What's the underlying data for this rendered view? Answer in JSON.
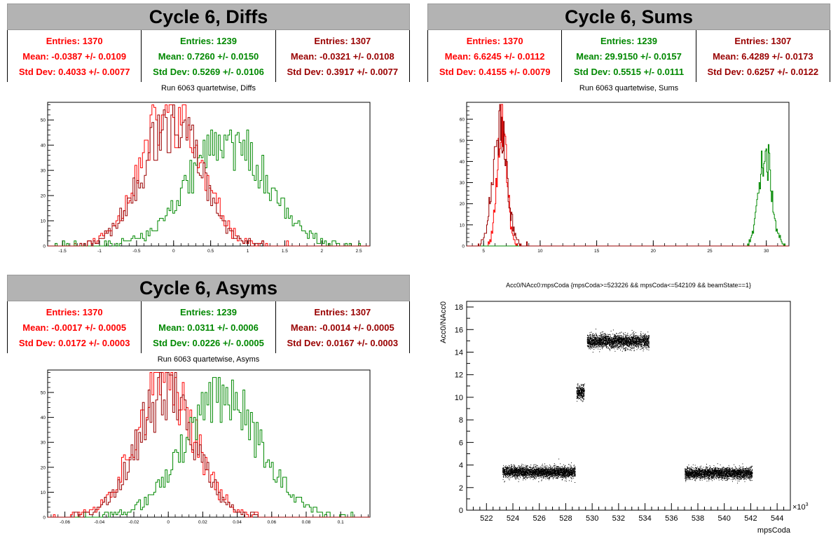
{
  "colors": {
    "red": "#ff0000",
    "green": "#008800",
    "darkred": "#990000"
  },
  "panels": {
    "diffs": {
      "title": "Cycle 6, Diffs",
      "subtitle": "Run 6063 quartetwise, Diffs",
      "stats": [
        {
          "entries": "Entries: 1370",
          "mean": "Mean: -0.0387 +/- 0.0109",
          "std": "Std Dev: 0.4033 +/- 0.0077",
          "color": "#ff0000"
        },
        {
          "entries": "Entries: 1239",
          "mean": "Mean: 0.7260 +/- 0.0150",
          "std": "Std Dev: 0.5269 +/- 0.0106",
          "color": "#008800"
        },
        {
          "entries": "Entries: 1307",
          "mean": "Mean: -0.0321 +/- 0.0108",
          "std": "Std Dev: 0.3917 +/- 0.0077",
          "color": "#990000"
        }
      ]
    },
    "sums": {
      "title": "Cycle 6, Sums",
      "subtitle": "Run 6063 quartetwise, Sums",
      "stats": [
        {
          "entries": "Entries: 1370",
          "mean": "Mean: 6.6245 +/- 0.0112",
          "std": "Std Dev: 0.4155 +/- 0.0079",
          "color": "#ff0000"
        },
        {
          "entries": "Entries: 1239",
          "mean": "Mean: 29.9150 +/- 0.0157",
          "std": "Std Dev: 0.5515 +/- 0.0111",
          "color": "#008800"
        },
        {
          "entries": "Entries: 1307",
          "mean": "Mean: 6.4289 +/- 0.0173",
          "std": "Std Dev: 0.6257 +/- 0.0122",
          "color": "#990000"
        }
      ]
    },
    "asyms": {
      "title": "Cycle 6, Asyms",
      "subtitle": "Run 6063 quartetwise, Asyms",
      "stats": [
        {
          "entries": "Entries: 1370",
          "mean": "Mean: -0.0017 +/- 0.0005",
          "std": "Std Dev: 0.0172 +/- 0.0003",
          "color": "#ff0000"
        },
        {
          "entries": "Entries: 1239",
          "mean": "Mean: 0.0311 +/- 0.0006",
          "std": "Std Dev: 0.0226 +/- 0.0005",
          "color": "#008800"
        },
        {
          "entries": "Entries: 1307",
          "mean": "Mean: -0.0014 +/- 0.0005",
          "std": "Std Dev: 0.0167 +/- 0.0003",
          "color": "#990000"
        }
      ]
    },
    "scatter": {
      "title": "Acc0/NAcc0:mpsCoda {mpsCoda>=523226 && mpsCoda<=542109 && beamState==1}"
    }
  },
  "chart_data": [
    {
      "type": "histogram",
      "id": "diffs",
      "xlim": [
        -1.7,
        2.65
      ],
      "ylim": [
        0,
        57
      ],
      "xticks": [
        -1.5,
        -1,
        -0.5,
        0,
        0.5,
        1,
        1.5,
        2,
        2.5
      ],
      "xticklabels": [
        "-1.5",
        "-1",
        "-0.5",
        "0",
        "0.5",
        "1",
        "1.5",
        "2",
        "2.5"
      ],
      "yticks": [
        0,
        10,
        20,
        30,
        40,
        50
      ],
      "series": [
        {
          "color": "#ff0000",
          "mean": -0.0387,
          "std": 0.4033,
          "peak": 55
        },
        {
          "color": "#008800",
          "mean": 0.726,
          "std": 0.5269,
          "peak": 43
        },
        {
          "color": "#990000",
          "mean": -0.0321,
          "std": 0.3917,
          "peak": 52
        }
      ]
    },
    {
      "type": "histogram",
      "id": "sums",
      "xlim": [
        3.5,
        32
      ],
      "ylim": [
        0,
        68
      ],
      "xticks": [
        5,
        10,
        15,
        20,
        25,
        30
      ],
      "xticklabels": [
        "5",
        "10",
        "15",
        "20",
        "25",
        "30"
      ],
      "yticks": [
        0,
        10,
        20,
        30,
        40,
        50,
        60
      ],
      "series": [
        {
          "color": "#ff0000",
          "mean": 6.6245,
          "std": 0.4155,
          "peak": 66
        },
        {
          "color": "#008800",
          "mean": 29.915,
          "std": 0.5515,
          "peak": 45
        },
        {
          "color": "#990000",
          "mean": 6.4289,
          "std": 0.6257,
          "peak": 58
        }
      ]
    },
    {
      "type": "histogram",
      "id": "asyms",
      "xlim": [
        -0.07,
        0.117
      ],
      "ylim": [
        0,
        59
      ],
      "xticks": [
        -0.06,
        -0.04,
        -0.02,
        0,
        0.02,
        0.04,
        0.06,
        0.08,
        0.1
      ],
      "xticklabels": [
        "-0.06",
        "-0.04",
        "-0.02",
        "0",
        "0.02",
        "0.04",
        "0.06",
        "0.08",
        "0.1"
      ],
      "yticks": [
        0,
        10,
        20,
        30,
        40,
        50
      ],
      "series": [
        {
          "color": "#ff0000",
          "mean": -0.0017,
          "std": 0.0172,
          "peak": 57
        },
        {
          "color": "#008800",
          "mean": 0.0311,
          "std": 0.0226,
          "peak": 48
        },
        {
          "color": "#990000",
          "mean": -0.0014,
          "std": 0.0167,
          "peak": 52
        }
      ]
    },
    {
      "type": "scatter",
      "id": "scatter",
      "xlabel": "mpsCoda",
      "ylabel": "Acc0/NAcc0",
      "xlim": [
        520.5,
        545
      ],
      "ylim": [
        0,
        18.5
      ],
      "xticks": [
        522,
        524,
        526,
        528,
        530,
        532,
        534,
        536,
        538,
        540,
        542,
        544
      ],
      "yticks": [
        0,
        2,
        4,
        6,
        8,
        10,
        12,
        14,
        16,
        18
      ],
      "xmultiplier": "×10",
      "xmultiplier_exp": "3",
      "clusters": [
        {
          "x": [
            523.2,
            528.7
          ],
          "y_center": 3.4,
          "y_spread": 0.45
        },
        {
          "x": [
            528.8,
            529.4
          ],
          "y_center": 10.5,
          "y_spread": 0.55
        },
        {
          "x": [
            529.6,
            534.3
          ],
          "y_center": 15.0,
          "y_spread": 0.55
        },
        {
          "x": [
            537.0,
            542.1
          ],
          "y_center": 3.3,
          "y_spread": 0.45
        }
      ]
    }
  ]
}
